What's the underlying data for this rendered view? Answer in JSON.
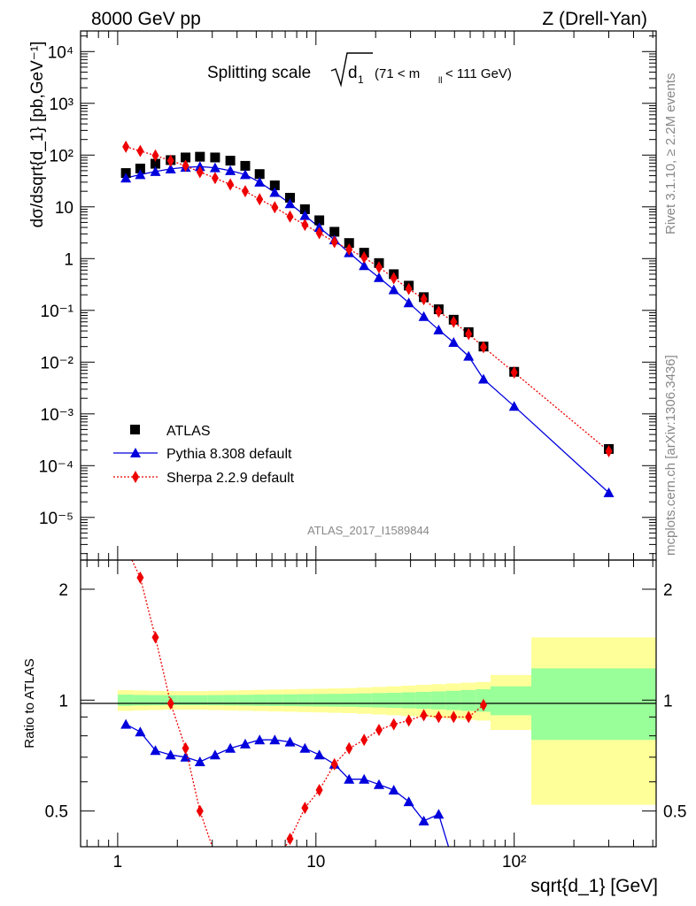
{
  "header": {
    "left": "8000 GeV pp",
    "right": "Z (Drell-Yan)"
  },
  "plot_title": "Splitting scale",
  "plot_title_symbol": "d",
  "plot_title_subscript": "1",
  "plot_title_cut": "(71 < m",
  "plot_title_cut_sub": "ll",
  "plot_title_cut_end": " < 111 GeV)",
  "side_labels": {
    "rivet": "Rivet 3.1.10, ≥ 2.2M events",
    "mcplots": "mcplots.cern.ch [arXiv:1306.3436]"
  },
  "watermark": "ATLAS_2017_I1589844",
  "axes": {
    "ylabel_top": "dσ/dsqrt{d_1} [pb,GeV⁻¹]",
    "ylabel_ratio": "Ratio to ATLAS",
    "xlabel": "sqrt{d_1} [GeV]",
    "x_ticks": [
      "1",
      "10",
      "10²"
    ],
    "y_ticks_top": [
      "10⁴",
      "10³",
      "10²",
      "10",
      "1",
      "10⁻¹",
      "10⁻²",
      "10⁻³",
      "10⁻⁴",
      "10⁻⁵"
    ],
    "y_ticks_ratio": [
      "2",
      "1",
      "0.5"
    ]
  },
  "legend": {
    "atlas": "ATLAS",
    "pythia": "Pythia 8.308 default",
    "sherpa": "Sherpa 2.2.9 default"
  },
  "colors": {
    "atlas": "#000000",
    "pythia": "#0000dd",
    "sherpa": "#ee0000",
    "band_outer": "#ffff99",
    "band_inner": "#99ff99"
  },
  "chart_data": {
    "type": "scatter",
    "x_scale": "log",
    "y_scale_top": "log",
    "y_scale_ratio": "log",
    "xlim": [
      0.65,
      520
    ],
    "ylim_top": [
      1.5e-06,
      25000
    ],
    "ylim_ratio": [
      0.4,
      2.4
    ],
    "x": [
      1.1,
      1.3,
      1.55,
      1.85,
      2.2,
      2.6,
      3.1,
      3.7,
      4.4,
      5.2,
      6.2,
      7.4,
      8.8,
      10.4,
      12.4,
      14.7,
      17.5,
      20.8,
      24.7,
      29.4,
      35,
      41.6,
      49.5,
      58.9,
      70,
      100,
      300
    ],
    "series": [
      {
        "name": "ATLAS",
        "values": [
          45,
          55,
          68,
          80,
          90,
          93,
          90,
          78,
          62,
          43,
          26,
          15,
          9,
          5.5,
          3.3,
          2.0,
          1.3,
          0.82,
          0.5,
          0.3,
          0.18,
          0.105,
          0.066,
          0.038,
          0.02,
          0.0065,
          0.00021
        ]
      },
      {
        "name": "Pythia 8.308 default",
        "values": [
          36,
          42,
          48,
          54,
          58,
          60,
          57,
          50,
          42,
          30,
          19,
          11.5,
          6.8,
          4.0,
          2.3,
          1.3,
          0.73,
          0.43,
          0.25,
          0.14,
          0.076,
          0.042,
          0.024,
          0.013,
          0.0047,
          0.0014,
          3e-05
        ]
      },
      {
        "name": "Sherpa 2.2.9 default",
        "values": [
          145,
          120,
          98,
          78,
          62,
          47,
          36,
          27,
          20,
          14,
          9.8,
          6.5,
          4.5,
          3.1,
          2.1,
          1.5,
          1.05,
          0.68,
          0.42,
          0.26,
          0.165,
          0.095,
          0.06,
          0.035,
          0.0195,
          0.0063,
          0.00019
        ]
      }
    ],
    "ratio": {
      "pythia_x": [
        1.1,
        1.3,
        1.55,
        1.85,
        2.2,
        2.6,
        3.1,
        3.7,
        4.4,
        5.2,
        6.2,
        7.4,
        8.8,
        10.4,
        12.4,
        14.7,
        17.5,
        20.8,
        24.7,
        29.4,
        35,
        41.6,
        49.5
      ],
      "pythia_values": [
        0.86,
        0.82,
        0.73,
        0.71,
        0.7,
        0.68,
        0.71,
        0.74,
        0.76,
        0.78,
        0.78,
        0.77,
        0.74,
        0.71,
        0.67,
        0.61,
        0.61,
        0.59,
        0.57,
        0.53,
        0.47,
        0.49,
        0.36
      ],
      "sherpa_x": [
        1.3,
        1.55,
        1.85,
        2.2,
        2.6,
        3.1,
        6.2,
        7.4,
        8.8,
        10.4,
        12.4,
        14.7,
        17.5,
        20.8,
        24.7,
        29.4,
        35,
        41.6,
        49.5,
        58.9,
        70
      ],
      "sherpa_values": [
        2.15,
        1.48,
        0.98,
        0.74,
        0.5,
        0.38,
        0.36,
        0.42,
        0.51,
        0.57,
        0.67,
        0.74,
        0.78,
        0.83,
        0.86,
        0.88,
        0.91,
        0.9,
        0.9,
        0.9,
        0.97
      ],
      "band_edges": [
        1.0,
        1.2,
        1.42,
        1.7,
        2.0,
        2.4,
        2.85,
        3.4,
        4.05,
        4.8,
        5.7,
        6.8,
        8.1,
        9.6,
        11.4,
        13.5,
        16.1,
        19.1,
        22.7,
        27,
        32,
        38.1,
        45.3,
        53.8,
        64,
        76,
        122,
        520
      ],
      "band_outer_half": [
        0.065,
        0.062,
        0.06,
        0.058,
        0.058,
        0.058,
        0.06,
        0.062,
        0.064,
        0.066,
        0.068,
        0.07,
        0.072,
        0.074,
        0.076,
        0.078,
        0.082,
        0.086,
        0.09,
        0.095,
        0.1,
        0.105,
        0.11,
        0.115,
        0.12,
        0.17,
        0.48
      ],
      "band_inner_half": [
        0.035,
        0.033,
        0.032,
        0.031,
        0.031,
        0.031,
        0.032,
        0.033,
        0.034,
        0.035,
        0.036,
        0.037,
        0.038,
        0.039,
        0.04,
        0.041,
        0.043,
        0.045,
        0.047,
        0.05,
        0.053,
        0.056,
        0.06,
        0.065,
        0.07,
        0.09,
        0.22
      ]
    }
  }
}
